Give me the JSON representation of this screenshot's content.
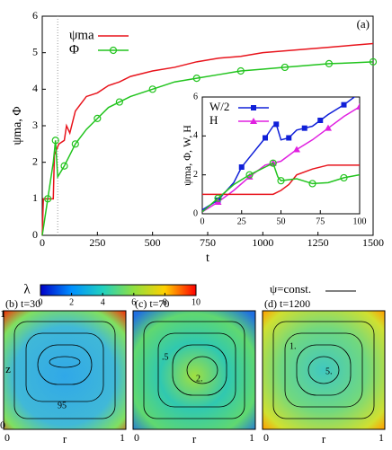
{
  "chart_data": [
    {
      "type": "line",
      "label": "(a)",
      "xlabel": "t",
      "ylabel": "ψma, Φ",
      "xlim": [
        0,
        1500
      ],
      "ylim": [
        0,
        6
      ],
      "xticks": [
        0,
        250,
        500,
        750,
        1000,
        1250,
        1500
      ],
      "yticks": [
        0,
        1,
        2,
        3,
        4,
        5,
        6
      ],
      "vlines": [
        70
      ],
      "legend": "top-left",
      "series": [
        {
          "name": "ψma",
          "color": "#e8141c",
          "marker": "none",
          "x": [
            0,
            5,
            50,
            55,
            75,
            100,
            110,
            125,
            150,
            175,
            200,
            250,
            300,
            350,
            400,
            500,
            600,
            700,
            800,
            900,
            1000,
            1100,
            1200,
            1300,
            1400,
            1500
          ],
          "values": [
            0,
            1,
            1,
            2.2,
            2.5,
            2.6,
            3.0,
            2.8,
            3.4,
            3.6,
            3.8,
            3.9,
            4.1,
            4.2,
            4.35,
            4.5,
            4.6,
            4.75,
            4.85,
            4.9,
            5.0,
            5.05,
            5.1,
            5.15,
            5.2,
            5.25
          ]
        },
        {
          "name": "Φ",
          "color": "#22c41e",
          "marker": "circle",
          "x": [
            0,
            25,
            50,
            60,
            70,
            100,
            125,
            150,
            200,
            250,
            300,
            350,
            400,
            500,
            600,
            700,
            800,
            900,
            1000,
            1100,
            1200,
            1300,
            1400,
            1500
          ],
          "values": [
            0,
            1.0,
            2.0,
            2.6,
            1.6,
            1.9,
            2.2,
            2.5,
            2.9,
            3.2,
            3.5,
            3.65,
            3.8,
            4.0,
            4.2,
            4.3,
            4.4,
            4.5,
            4.55,
            4.6,
            4.65,
            4.7,
            4.72,
            4.75
          ]
        }
      ]
    },
    {
      "type": "line",
      "ylabel": "ψma, Φ, W, H",
      "xlim": [
        0,
        100
      ],
      "ylim": [
        0,
        6
      ],
      "xticks": [
        0,
        25,
        50,
        75,
        100
      ],
      "yticks": [
        0,
        2,
        4,
        6
      ],
      "legend": "top-left",
      "series": [
        {
          "name": "W/2",
          "color": "#1020d8",
          "marker": "square",
          "x": [
            0,
            10,
            20,
            25,
            30,
            40,
            45,
            47,
            50,
            55,
            60,
            65,
            70,
            75,
            80,
            90,
            100
          ],
          "values": [
            0.2,
            0.7,
            1.6,
            2.4,
            2.9,
            3.9,
            4.5,
            4.6,
            3.8,
            3.9,
            4.3,
            4.4,
            4.5,
            4.8,
            5.1,
            5.6,
            6.2
          ]
        },
        {
          "name": "H",
          "color": "#e020e0",
          "marker": "triangle",
          "x": [
            0,
            10,
            20,
            30,
            40,
            45,
            50,
            60,
            70,
            80,
            90,
            100
          ],
          "values": [
            0.1,
            0.6,
            1.2,
            1.9,
            2.5,
            2.6,
            2.7,
            3.3,
            3.8,
            4.4,
            5.0,
            5.5
          ]
        },
        {
          "color": "#e8141c",
          "marker": "none",
          "x": [
            0,
            45,
            50,
            55,
            60,
            70,
            80,
            90,
            100
          ],
          "values": [
            1,
            1,
            1.2,
            1.5,
            2.0,
            2.3,
            2.5,
            2.5,
            2.5
          ]
        },
        {
          "color": "#22c41e",
          "marker": "circle",
          "x": [
            0,
            10,
            20,
            30,
            40,
            45,
            48,
            50,
            60,
            70,
            80,
            90,
            100
          ],
          "values": [
            0.1,
            0.8,
            1.5,
            2.0,
            2.4,
            2.6,
            1.9,
            1.7,
            1.8,
            1.55,
            1.6,
            1.85,
            2.0
          ]
        }
      ]
    },
    {
      "type": "heatmap",
      "colorbar_label": "λ",
      "clim": [
        0,
        10
      ],
      "cticks": [
        0,
        2,
        4,
        6,
        8,
        10
      ],
      "contour_legend": "ψ=const.",
      "xlabel": "r",
      "ylabel": "z",
      "xticks": [
        0,
        1
      ],
      "yticks": [
        0,
        1
      ],
      "panels": [
        {
          "title": "(b) t=30",
          "contour_labels": [
            "95"
          ]
        },
        {
          "title": "(c) t=70",
          "contour_labels": [
            ".5",
            "2."
          ]
        },
        {
          "title": "(d) t=1200",
          "contour_labels": [
            "1.",
            "5."
          ]
        }
      ]
    }
  ]
}
